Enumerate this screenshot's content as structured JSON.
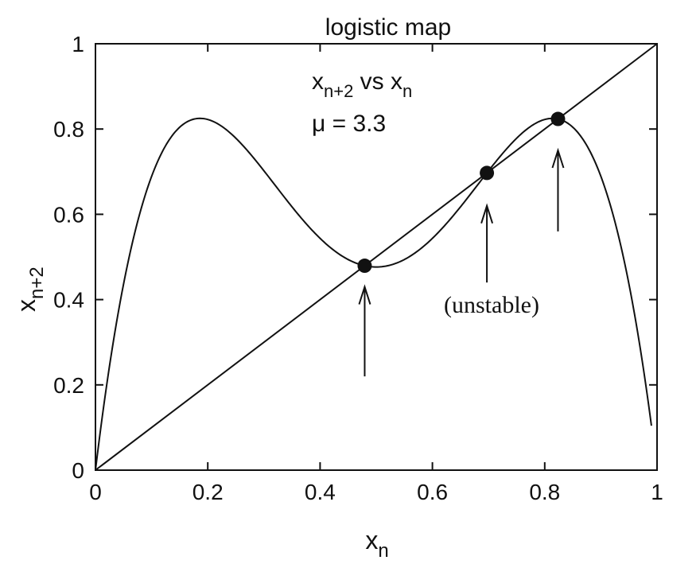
{
  "chart_data": {
    "type": "line",
    "title": "logistic map",
    "xlabel": "x",
    "xlabel_sub": "n",
    "ylabel": "x",
    "ylabel_sub": "n+2",
    "xlim": [
      0,
      1
    ],
    "ylim": [
      0,
      1
    ],
    "xticks": [
      0,
      0.2,
      0.4,
      0.6,
      0.8,
      1
    ],
    "yticks": [
      0,
      0.2,
      0.4,
      0.6,
      0.8,
      1
    ],
    "xtick_labels": [
      "0",
      "0.2",
      "0.4",
      "0.6",
      "0.8",
      "1"
    ],
    "ytick_labels": [
      "0",
      "0.2",
      "0.4",
      "0.6",
      "0.8",
      "1"
    ],
    "grid": false,
    "mu": 3.3,
    "series": [],
    "annotations": {
      "line1_main": "x",
      "line1_sub": "n+2",
      "line1_mid": " vs x",
      "line1_sub2": "n",
      "line2": "μ = 3.3",
      "unstable": "(unstable)"
    },
    "fixed_points": [
      {
        "x": 0.4794,
        "y": 0.4794
      },
      {
        "x": 0.697,
        "y": 0.697
      },
      {
        "x": 0.8236,
        "y": 0.8236
      }
    ],
    "arrows": [
      {
        "x": 0.4794,
        "from_y": 0.22,
        "to_y": 0.43
      },
      {
        "x": 0.697,
        "from_y": 0.44,
        "to_y": 0.62
      },
      {
        "x": 0.8236,
        "from_y": 0.56,
        "to_y": 0.75
      }
    ],
    "curve_domain": [
      0,
      0.99
    ]
  }
}
